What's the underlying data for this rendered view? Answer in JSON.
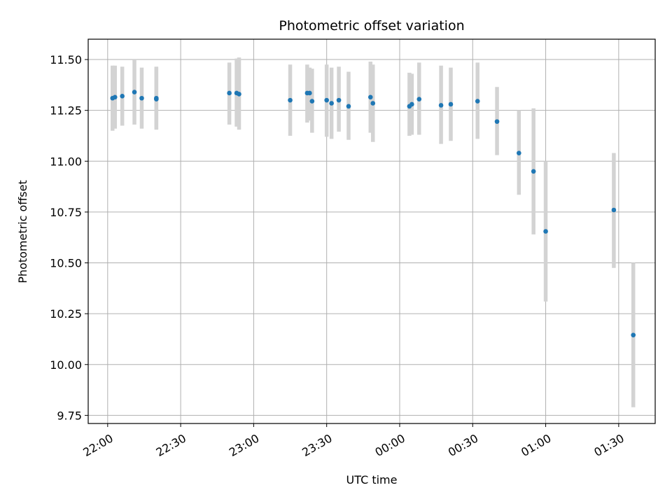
{
  "chart_data": {
    "type": "scatter",
    "title": "Photometric offset variation",
    "xlabel": "UTC time",
    "ylabel": "Photometric offset",
    "x_axis_kind": "time",
    "xlim": [
      "21:52",
      "01:45"
    ],
    "ylim": [
      9.71,
      11.6
    ],
    "x_ticks": [
      "22:00",
      "22:30",
      "23:00",
      "23:30",
      "00:00",
      "00:30",
      "01:00",
      "01:30"
    ],
    "y_ticks": [
      "9.75",
      "10.00",
      "10.25",
      "10.50",
      "10.75",
      "11.00",
      "11.25",
      "11.50"
    ],
    "grid": true,
    "point_color": "#1f77b4",
    "errorbar_color": "#d3d3d3",
    "points": [
      {
        "t": "22:02",
        "y": 11.31,
        "lo": 11.15,
        "hi": 11.47
      },
      {
        "t": "22:03",
        "y": 11.315,
        "lo": 11.16,
        "hi": 11.47
      },
      {
        "t": "22:06",
        "y": 11.32,
        "lo": 11.175,
        "hi": 11.465
      },
      {
        "t": "22:11",
        "y": 11.34,
        "lo": 11.18,
        "hi": 11.5
      },
      {
        "t": "22:14",
        "y": 11.31,
        "lo": 11.16,
        "hi": 11.46
      },
      {
        "t": "22:20",
        "y": 11.305,
        "lo": 11.155,
        "hi": 11.465
      },
      {
        "t": "22:20",
        "y": 11.31,
        "lo": 11.16,
        "hi": 11.46
      },
      {
        "t": "22:50",
        "y": 11.335,
        "lo": 11.18,
        "hi": 11.485
      },
      {
        "t": "22:53",
        "y": 11.335,
        "lo": 11.17,
        "hi": 11.505
      },
      {
        "t": "22:54",
        "y": 11.33,
        "lo": 11.155,
        "hi": 11.51
      },
      {
        "t": "23:15",
        "y": 11.3,
        "lo": 11.125,
        "hi": 11.475
      },
      {
        "t": "23:22",
        "y": 11.335,
        "lo": 11.19,
        "hi": 11.475
      },
      {
        "t": "23:23",
        "y": 11.335,
        "lo": 11.2,
        "hi": 11.46
      },
      {
        "t": "23:24",
        "y": 11.295,
        "lo": 11.14,
        "hi": 11.455
      },
      {
        "t": "23:30",
        "y": 11.3,
        "lo": 11.12,
        "hi": 11.475
      },
      {
        "t": "23:32",
        "y": 11.285,
        "lo": 11.11,
        "hi": 11.46
      },
      {
        "t": "23:35",
        "y": 11.3,
        "lo": 11.145,
        "hi": 11.465
      },
      {
        "t": "23:39",
        "y": 11.27,
        "lo": 11.105,
        "hi": 11.44
      },
      {
        "t": "23:48",
        "y": 11.315,
        "lo": 11.14,
        "hi": 11.49
      },
      {
        "t": "23:49",
        "y": 11.285,
        "lo": 11.095,
        "hi": 11.475
      },
      {
        "t": "00:04",
        "y": 11.27,
        "lo": 11.125,
        "hi": 11.435
      },
      {
        "t": "00:05",
        "y": 11.28,
        "lo": 11.13,
        "hi": 11.43
      },
      {
        "t": "00:08",
        "y": 11.305,
        "lo": 11.13,
        "hi": 11.485
      },
      {
        "t": "00:17",
        "y": 11.275,
        "lo": 11.085,
        "hi": 11.47
      },
      {
        "t": "00:21",
        "y": 11.28,
        "lo": 11.1,
        "hi": 11.46
      },
      {
        "t": "00:32",
        "y": 11.295,
        "lo": 11.11,
        "hi": 11.485
      },
      {
        "t": "00:40",
        "y": 11.195,
        "lo": 11.03,
        "hi": 11.365
      },
      {
        "t": "00:49",
        "y": 11.04,
        "lo": 10.835,
        "hi": 11.25
      },
      {
        "t": "00:55",
        "y": 10.95,
        "lo": 10.64,
        "hi": 11.26
      },
      {
        "t": "01:00",
        "y": 10.655,
        "lo": 10.31,
        "hi": 11.0
      },
      {
        "t": "01:28",
        "y": 10.76,
        "lo": 10.475,
        "hi": 11.04
      },
      {
        "t": "01:36",
        "y": 10.145,
        "lo": 9.79,
        "hi": 10.5
      }
    ]
  }
}
